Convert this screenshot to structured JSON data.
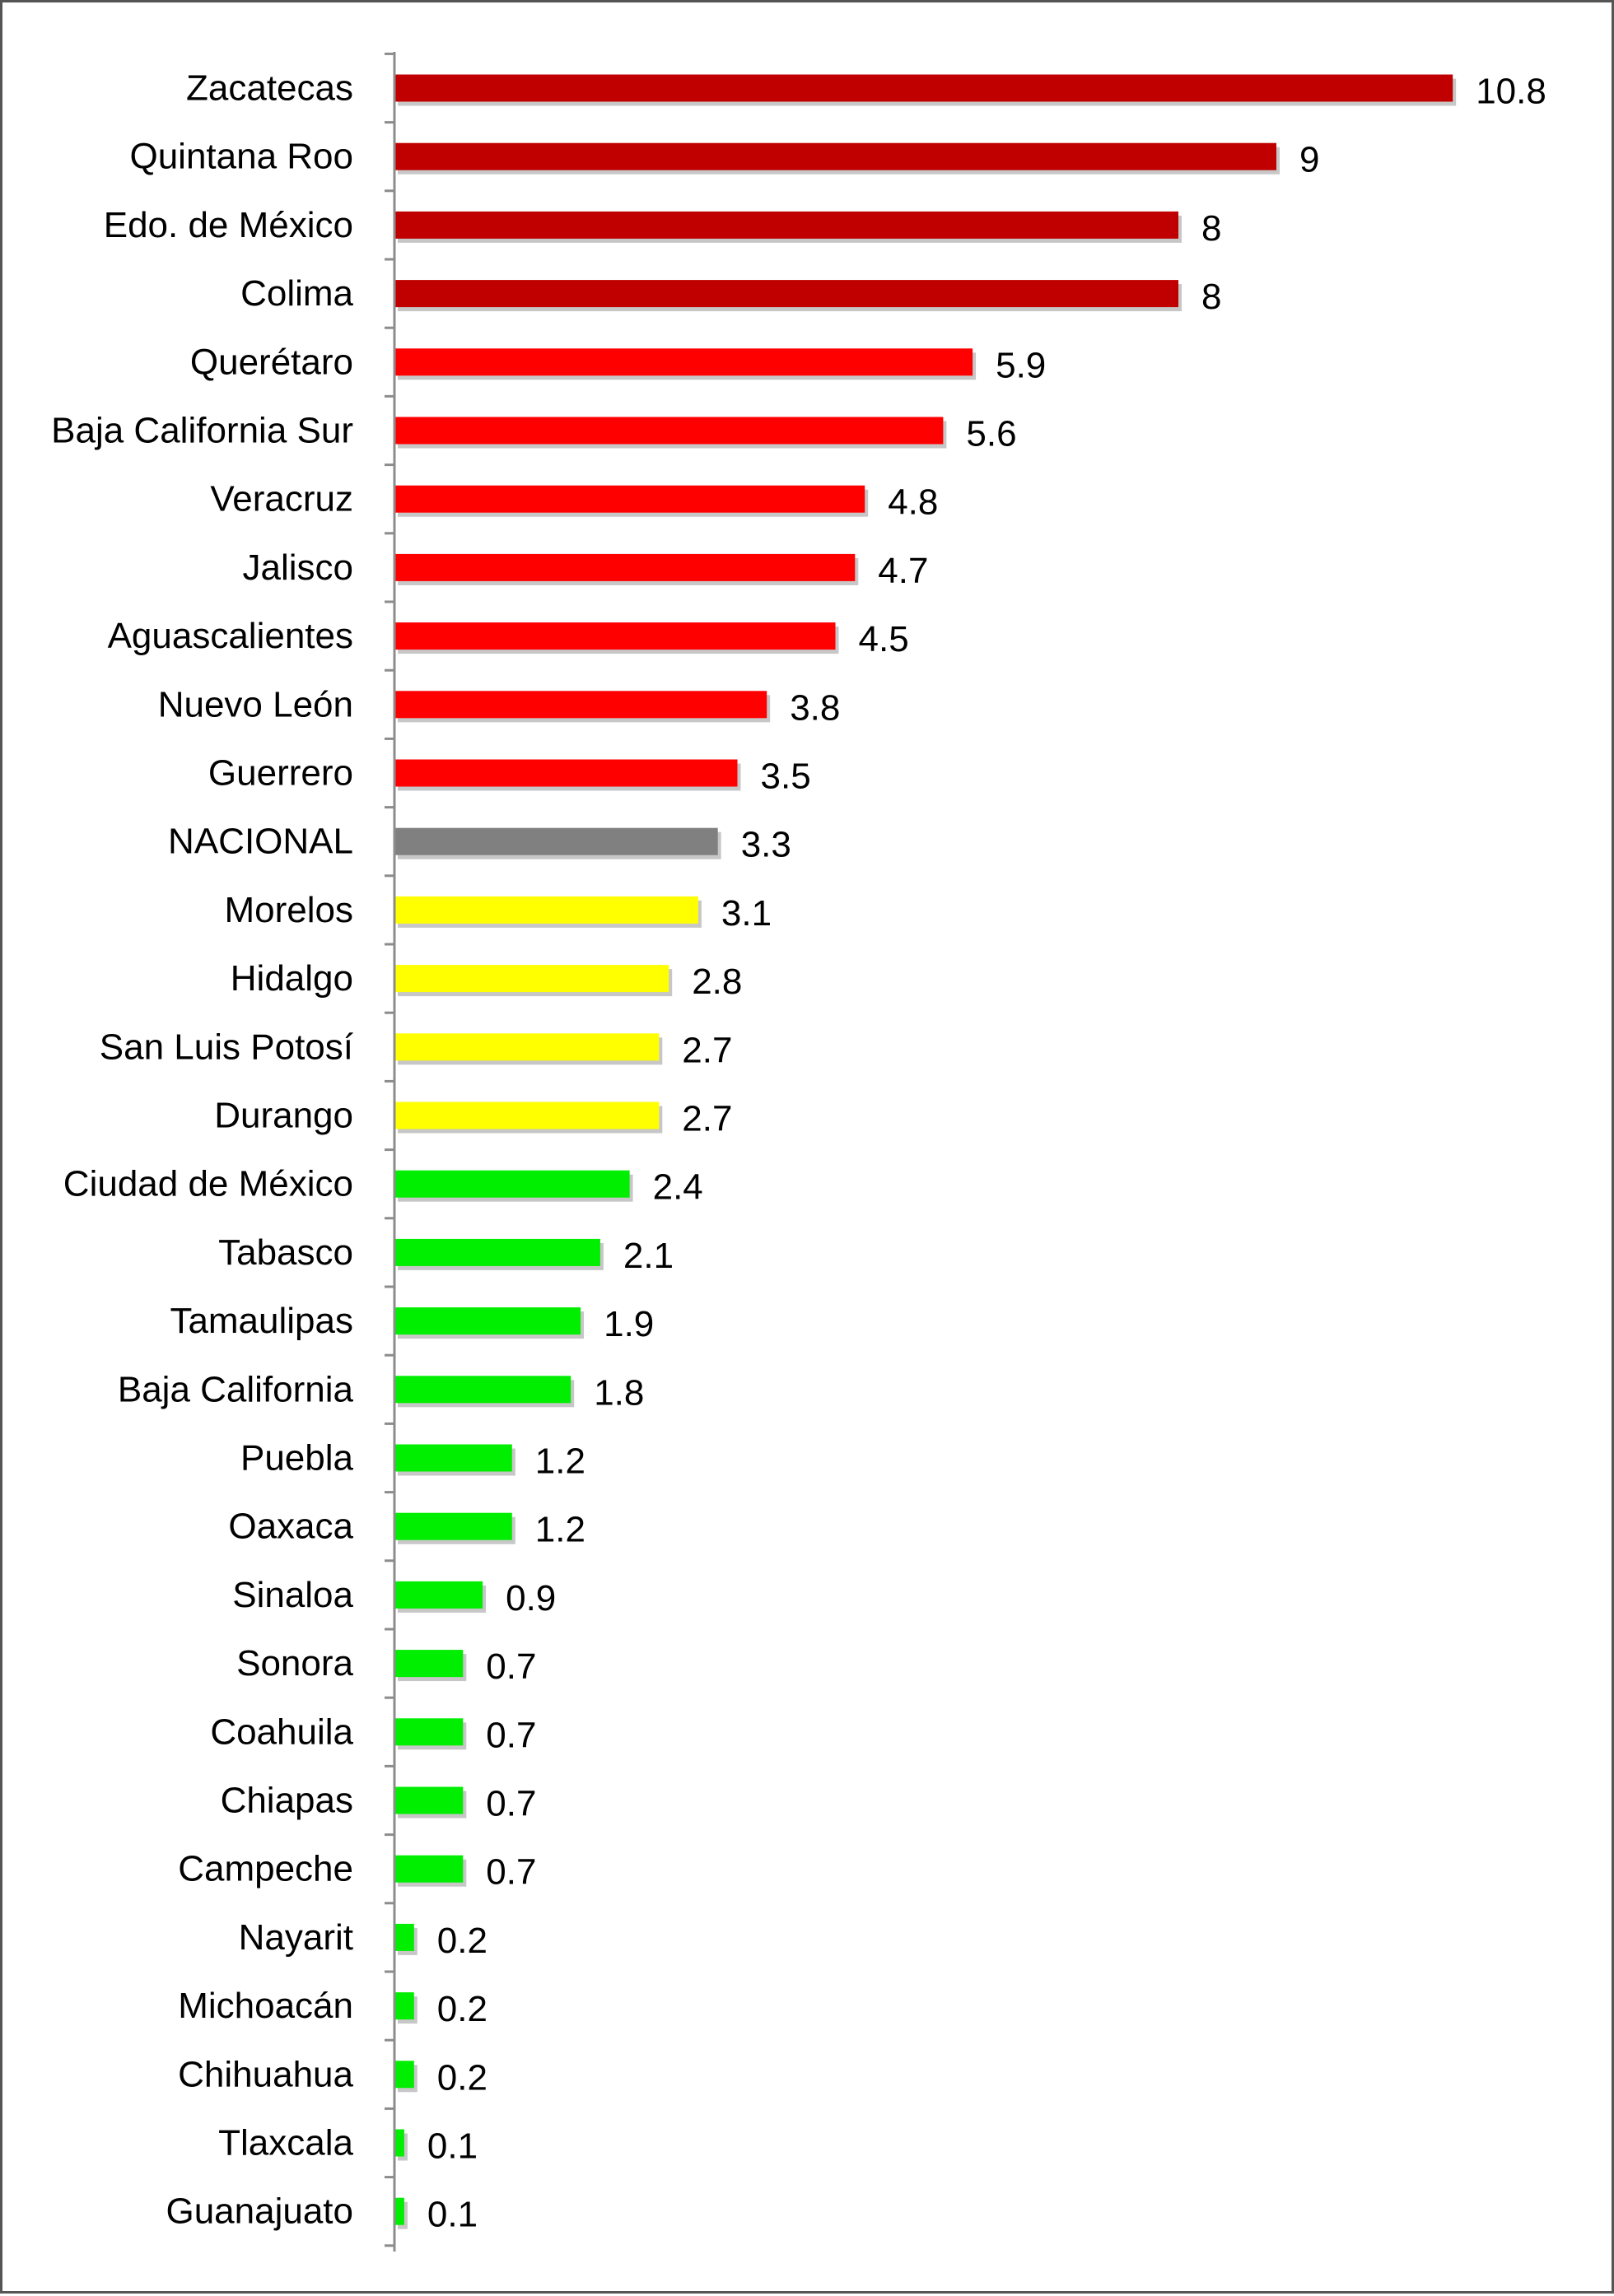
{
  "chart_data": {
    "type": "bar",
    "orientation": "horizontal",
    "title": "",
    "xlabel": "",
    "ylabel": "",
    "xlim": [
      0,
      12
    ],
    "grid": false,
    "legend": "none",
    "colors": {
      "high": "#c00000",
      "medium": "#ff0000",
      "national": "#808080",
      "low": "#ffff00",
      "lowest": "#00ee00"
    },
    "categories": [
      "Zacatecas",
      "Quintana Roo",
      "Edo. de México",
      "Colima",
      "Querétaro",
      "Baja California Sur",
      "Veracruz",
      "Jalisco",
      "Aguascalientes",
      "Nuevo León",
      "Guerrero",
      "NACIONAL",
      "Morelos",
      "Hidalgo",
      "San Luis Potosí",
      "Durango",
      "Ciudad de México",
      "Tabasco",
      "Tamaulipas",
      "Baja California",
      "Puebla",
      "Oaxaca",
      "Sinaloa",
      "Sonora",
      "Coahuila",
      "Chiapas",
      "Campeche",
      "Nayarit",
      "Michoacán",
      "Chihuahua",
      "Tlaxcala",
      "Guanajuato"
    ],
    "values": [
      10.8,
      9,
      8,
      8,
      5.9,
      5.6,
      4.8,
      4.7,
      4.5,
      3.8,
      3.5,
      3.3,
      3.1,
      2.8,
      2.7,
      2.7,
      2.4,
      2.1,
      1.9,
      1.8,
      1.2,
      1.2,
      0.9,
      0.7,
      0.7,
      0.7,
      0.7,
      0.2,
      0.2,
      0.2,
      0.1,
      0.1
    ],
    "value_labels": [
      "10.8",
      "9",
      "8",
      "8",
      "5.9",
      "5.6",
      "4.8",
      "4.7",
      "4.5",
      "3.8",
      "3.5",
      "3.3",
      "3.1",
      "2.8",
      "2.7",
      "2.7",
      "2.4",
      "2.1",
      "1.9",
      "1.8",
      "1.2",
      "1.2",
      "0.9",
      "0.7",
      "0.7",
      "0.7",
      "0.7",
      "0.2",
      "0.2",
      "0.2",
      "0.1",
      "0.1"
    ],
    "bar_color_groups": [
      "high",
      "high",
      "high",
      "high",
      "medium",
      "medium",
      "medium",
      "medium",
      "medium",
      "medium",
      "medium",
      "national",
      "low",
      "low",
      "low",
      "low",
      "lowest",
      "lowest",
      "lowest",
      "lowest",
      "lowest",
      "lowest",
      "lowest",
      "lowest",
      "lowest",
      "lowest",
      "lowest",
      "lowest",
      "lowest",
      "lowest",
      "lowest",
      "lowest"
    ]
  }
}
